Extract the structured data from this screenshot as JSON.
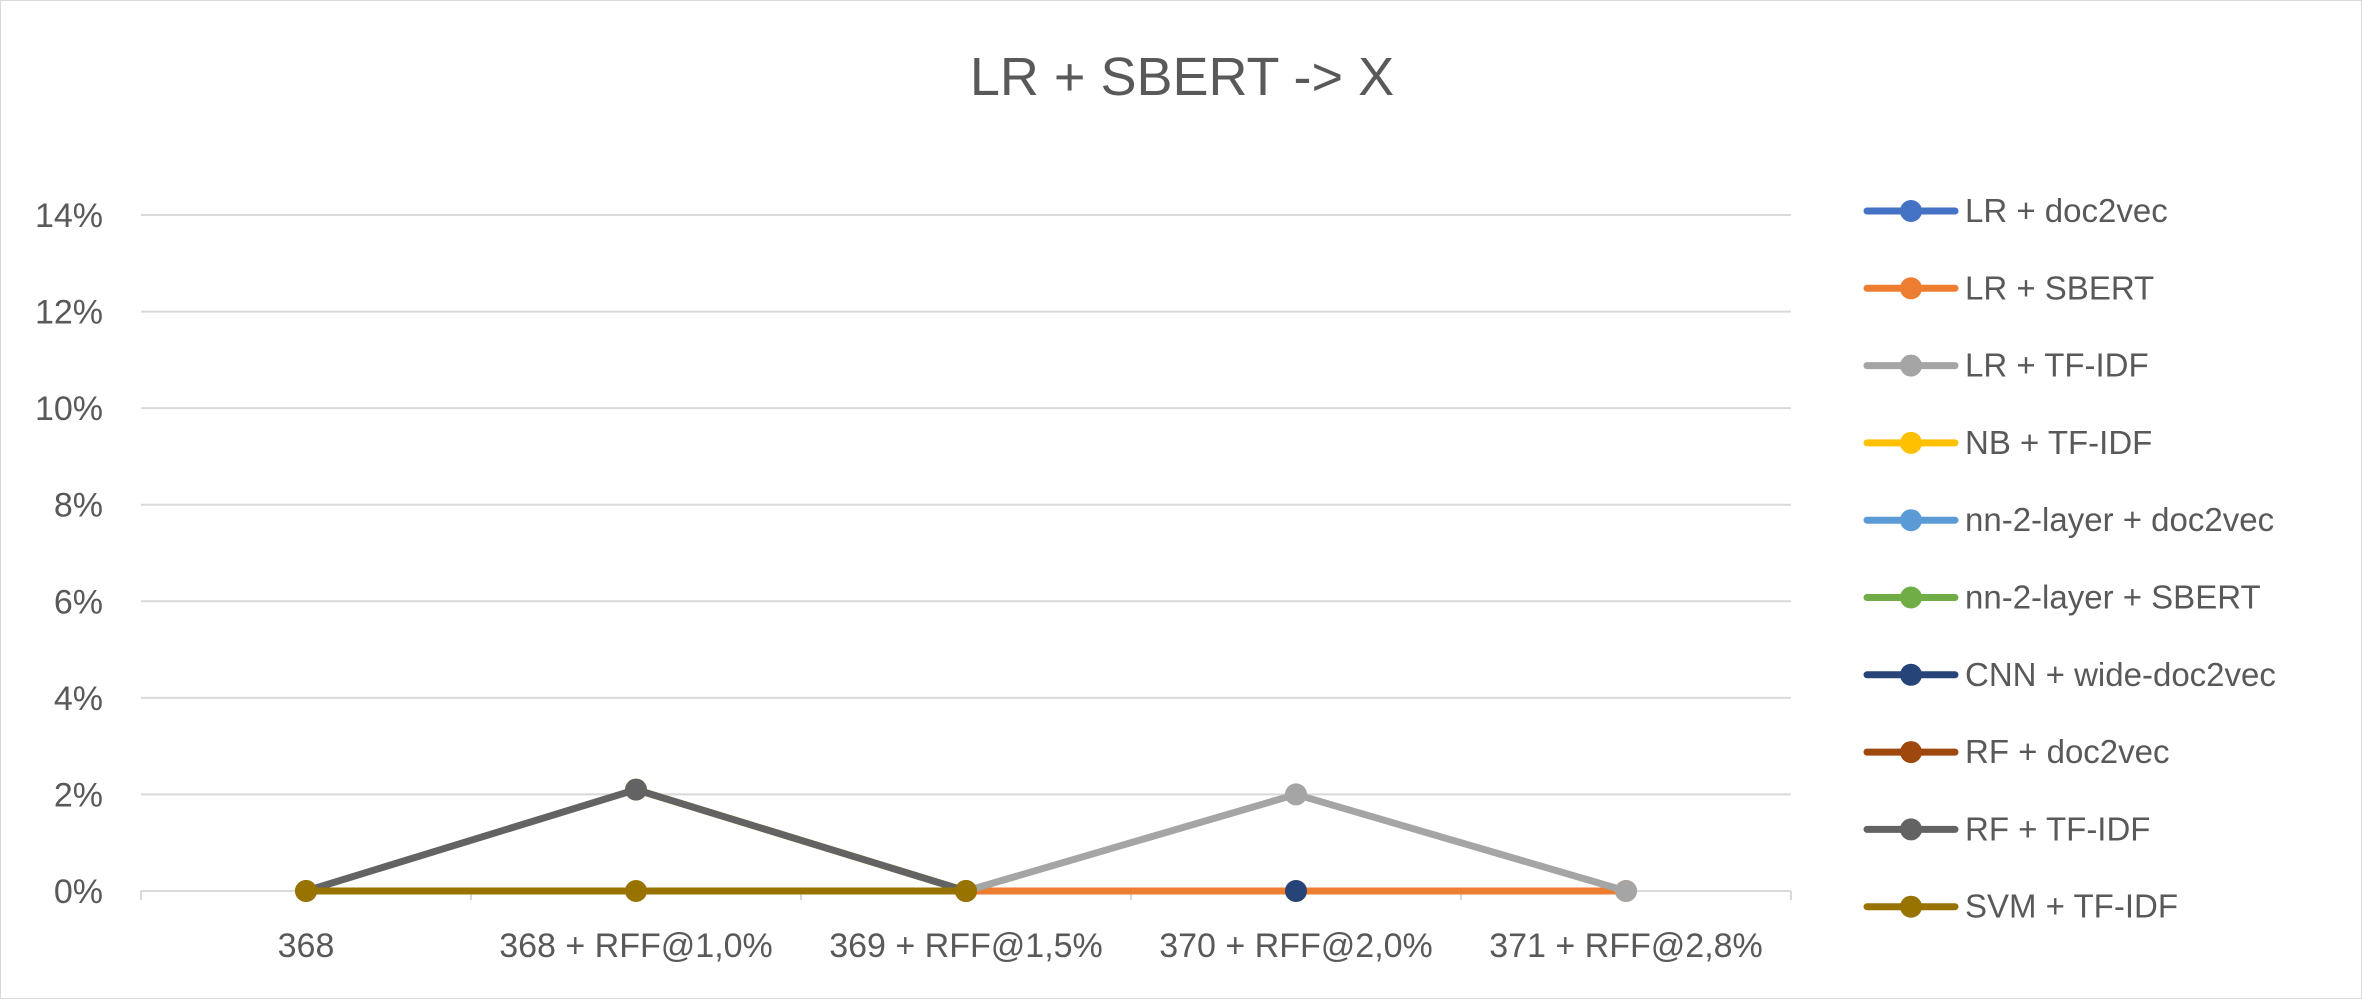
{
  "chart_data": {
    "type": "line",
    "title": "LR + SBERT -> X",
    "xlabel": "",
    "ylabel": "",
    "categories": [
      "368",
      "368 + RFF@1,0%",
      "369 + RFF@1,5%",
      "370 + RFF@2,0%",
      "371 + RFF@2,8%"
    ],
    "y_ticks": [
      "0%",
      "2%",
      "4%",
      "6%",
      "8%",
      "10%",
      "12%",
      "14%"
    ],
    "ylim": [
      0,
      14
    ],
    "y_unit": "%",
    "grid": "horizontal",
    "legend_position": "right",
    "series": [
      {
        "name": "LR + doc2vec",
        "color": "#4472C4",
        "values": [
          null,
          null,
          null,
          null,
          null
        ]
      },
      {
        "name": "LR + SBERT",
        "color": "#ED7D31",
        "values": [
          null,
          null,
          0,
          0,
          0
        ]
      },
      {
        "name": "LR + TF-IDF",
        "color": "#A5A5A5",
        "values": [
          null,
          null,
          0,
          2,
          0
        ]
      },
      {
        "name": "NB + TF-IDF",
        "color": "#FFC000",
        "values": [
          null,
          2.1,
          0,
          null,
          null
        ]
      },
      {
        "name": "nn-2-layer + doc2vec",
        "color": "#5B9BD5",
        "values": [
          null,
          null,
          null,
          null,
          null
        ]
      },
      {
        "name": "nn-2-layer + SBERT",
        "color": "#70AD47",
        "values": [
          null,
          null,
          null,
          null,
          null
        ]
      },
      {
        "name": "CNN + wide-doc2vec",
        "color": "#264478",
        "values": [
          null,
          null,
          null,
          0,
          null
        ]
      },
      {
        "name": "RF + doc2vec",
        "color": "#9E480E",
        "values": [
          null,
          null,
          null,
          null,
          null
        ]
      },
      {
        "name": "RF + TF-IDF",
        "color": "#636363",
        "values": [
          0,
          2.1,
          0,
          null,
          null
        ]
      },
      {
        "name": "SVM + TF-IDF",
        "color": "#997300",
        "values": [
          0,
          0,
          0,
          null,
          null
        ]
      }
    ]
  }
}
